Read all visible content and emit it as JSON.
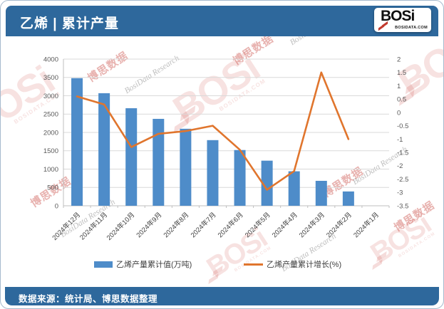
{
  "page": {
    "header": {
      "title": "乙烯 | 累计产量",
      "logo": {
        "text": "BOSi",
        "domain": "BOSIDATA.COM"
      }
    },
    "footer": {
      "source_text": "数据来源：统计局、博思数据整理"
    }
  },
  "watermark": {
    "logo_text": "BOSi",
    "logo_sub": "BOSIDATA.COM",
    "cn_text": "博思数据",
    "en_text": "BosiData Research"
  },
  "colors": {
    "header_blue": "#2e689c",
    "bar_blue": "#4e8cc9",
    "line_orange": "#e0752d",
    "axis_text": "#595959",
    "gridline": "#d9d9d9",
    "axis_line": "#bfbfbf"
  },
  "chart_data": {
    "type": "bar+line",
    "title": "乙烯 | 累计产量",
    "categories": [
      "2024年12月",
      "2024年11月",
      "2024年10月",
      "2024年9月",
      "2024年8月",
      "2024年7月",
      "2024年6月",
      "2024年5月",
      "2024年4月",
      "2024年3月",
      "2024年2月",
      "2024年1月"
    ],
    "series": [
      {
        "name": "乙烯产量累计值(万吨)",
        "type": "bar",
        "axis": "left",
        "color": "#4e8cc9",
        "values": [
          3480,
          3070,
          2660,
          2370,
          2100,
          1790,
          1520,
          1230,
          940,
          680,
          390,
          null
        ]
      },
      {
        "name": "乙烯产量累计增长(%)",
        "type": "line",
        "axis": "right",
        "color": "#e0752d",
        "values": [
          0.6,
          0.3,
          -1.3,
          -0.8,
          -0.7,
          -0.5,
          -1.4,
          -2.9,
          -2.2,
          1.5,
          -1.0,
          null
        ]
      }
    ],
    "left_axis": {
      "min": 0,
      "max": 4000,
      "step": 500,
      "ticks_bottom_up": [
        "0",
        "500",
        "1000",
        "1500",
        "2000",
        "2500",
        "3000",
        "3500",
        "4000"
      ]
    },
    "right_axis": {
      "min": -3.5,
      "max": 2,
      "step": 0.5,
      "ticks_top_down": [
        "2",
        "1.5",
        "1",
        "0.5",
        "0",
        "-0.5",
        "-1",
        "-1.5",
        "-2",
        "-2.5",
        "-3",
        "-3.5"
      ]
    },
    "grid": true,
    "legend_position": "bottom"
  }
}
